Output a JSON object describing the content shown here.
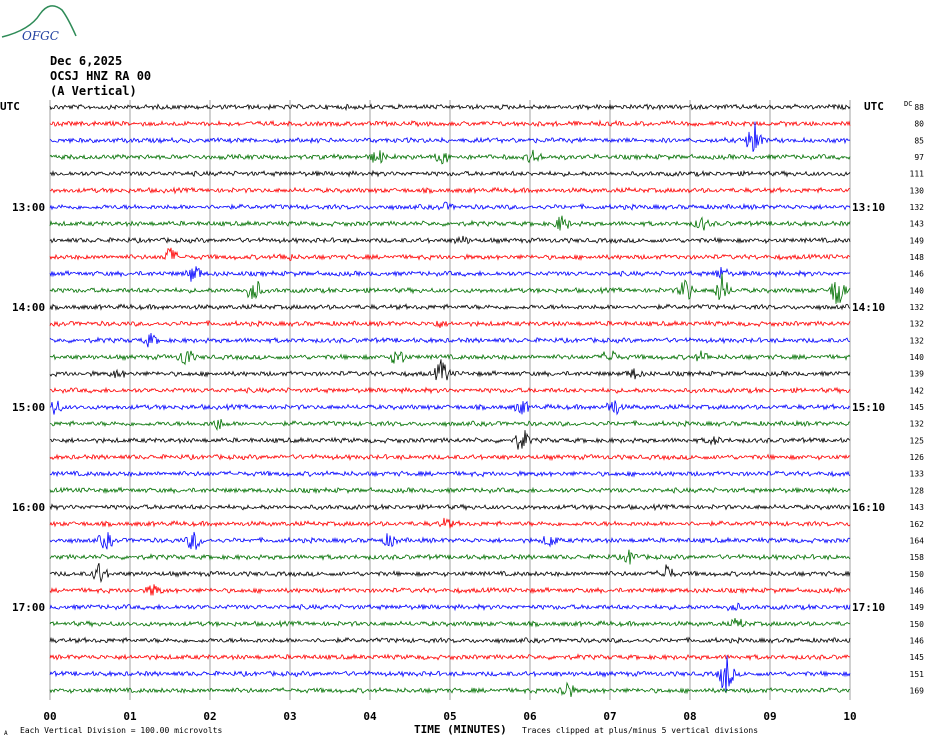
{
  "header": {
    "date": "Dec 6,2025",
    "station": "OCSJ HNZ RA 00",
    "component": "(A Vertical)",
    "logo_text": "OFGC"
  },
  "axes": {
    "left_title": "UTC",
    "right_title": "UTC",
    "dc_label": "DC",
    "xlabel": "TIME (MINUTES)",
    "footer_left": "Each Vertical Division =  100.00 microvolts",
    "footer_right": "Traces clipped at plus/minus 5 vertical divisions",
    "footer_mark": "A"
  },
  "chart_data": {
    "type": "line",
    "title": "",
    "xlabel": "TIME (MINUTES)",
    "xlim": [
      0,
      10
    ],
    "x_ticks": [
      "00",
      "01",
      "02",
      "03",
      "04",
      "05",
      "06",
      "07",
      "08",
      "09",
      "10"
    ],
    "left_time_labels": [
      {
        "row": 6,
        "label": "13:00"
      },
      {
        "row": 12,
        "label": "14:00"
      },
      {
        "row": 18,
        "label": "15:00"
      },
      {
        "row": 24,
        "label": "16:00"
      },
      {
        "row": 30,
        "label": "17:00"
      }
    ],
    "right_time_labels": [
      {
        "row": 6,
        "label": "13:10"
      },
      {
        "row": 12,
        "label": "14:10"
      },
      {
        "row": 18,
        "label": "15:10"
      },
      {
        "row": 24,
        "label": "16:10"
      },
      {
        "row": 30,
        "label": "17:10"
      }
    ],
    "dc_offsets": [
      88,
      80,
      85,
      97,
      111,
      130,
      132,
      143,
      149,
      148,
      146,
      140,
      132,
      132,
      132,
      140,
      139,
      142,
      145,
      132,
      125,
      126,
      133,
      128,
      143,
      162,
      164,
      158,
      150,
      146,
      149,
      150,
      146,
      145,
      151,
      169
    ],
    "trace_colors": [
      "#000000",
      "#ff0000",
      "#0000ff",
      "#007000"
    ],
    "events": [
      {
        "row": 2,
        "minute": 8.8,
        "amp": 3.5
      },
      {
        "row": 3,
        "minute": 4.1,
        "amp": 1.2
      },
      {
        "row": 3,
        "minute": 4.9,
        "amp": 1.0
      },
      {
        "row": 3,
        "minute": 6.05,
        "amp": 1.1
      },
      {
        "row": 6,
        "minute": 4.95,
        "amp": 0.5
      },
      {
        "row": 7,
        "minute": 6.4,
        "amp": 1.3
      },
      {
        "row": 7,
        "minute": 8.15,
        "amp": 1.0
      },
      {
        "row": 8,
        "minute": 5.15,
        "amp": 0.6
      },
      {
        "row": 9,
        "minute": 1.5,
        "amp": 1.5
      },
      {
        "row": 9,
        "minute": 2.95,
        "amp": 0.6
      },
      {
        "row": 10,
        "minute": 1.8,
        "amp": 1.6
      },
      {
        "row": 10,
        "minute": 8.4,
        "amp": 1.0
      },
      {
        "row": 11,
        "minute": 2.55,
        "amp": 2.2
      },
      {
        "row": 11,
        "minute": 7.95,
        "amp": 2.0
      },
      {
        "row": 11,
        "minute": 8.4,
        "amp": 2.5
      },
      {
        "row": 11,
        "minute": 9.85,
        "amp": 3.0
      },
      {
        "row": 13,
        "minute": 4.85,
        "amp": 0.5
      },
      {
        "row": 14,
        "minute": 1.25,
        "amp": 1.0
      },
      {
        "row": 15,
        "minute": 1.7,
        "amp": 1.6
      },
      {
        "row": 15,
        "minute": 4.35,
        "amp": 1.5
      },
      {
        "row": 15,
        "minute": 7.0,
        "amp": 1.4
      },
      {
        "row": 15,
        "minute": 8.15,
        "amp": 0.8
      },
      {
        "row": 16,
        "minute": 4.9,
        "amp": 2.2
      },
      {
        "row": 16,
        "minute": 7.3,
        "amp": 0.8
      },
      {
        "row": 16,
        "minute": 0.85,
        "amp": 0.6
      },
      {
        "row": 18,
        "minute": 0.05,
        "amp": 1.4
      },
      {
        "row": 18,
        "minute": 5.9,
        "amp": 1.1
      },
      {
        "row": 18,
        "minute": 7.05,
        "amp": 1.5
      },
      {
        "row": 19,
        "minute": 2.1,
        "amp": 0.9
      },
      {
        "row": 20,
        "minute": 5.9,
        "amp": 2.0
      },
      {
        "row": 20,
        "minute": 8.3,
        "amp": 0.6
      },
      {
        "row": 25,
        "minute": 4.95,
        "amp": 0.8
      },
      {
        "row": 26,
        "minute": 0.7,
        "amp": 1.4
      },
      {
        "row": 26,
        "minute": 1.8,
        "amp": 1.8
      },
      {
        "row": 26,
        "minute": 4.25,
        "amp": 1.1
      },
      {
        "row": 26,
        "minute": 6.25,
        "amp": 1.0
      },
      {
        "row": 27,
        "minute": 7.25,
        "amp": 1.1
      },
      {
        "row": 28,
        "minute": 0.62,
        "amp": 1.8
      },
      {
        "row": 28,
        "minute": 7.7,
        "amp": 1.6
      },
      {
        "row": 29,
        "minute": 1.3,
        "amp": 1.0
      },
      {
        "row": 30,
        "minute": 8.55,
        "amp": 0.6
      },
      {
        "row": 31,
        "minute": 8.6,
        "amp": 0.8
      },
      {
        "row": 34,
        "minute": 8.45,
        "amp": 3.5
      },
      {
        "row": 35,
        "minute": 6.45,
        "amp": 1.7
      }
    ],
    "clip_divisions": 5
  }
}
